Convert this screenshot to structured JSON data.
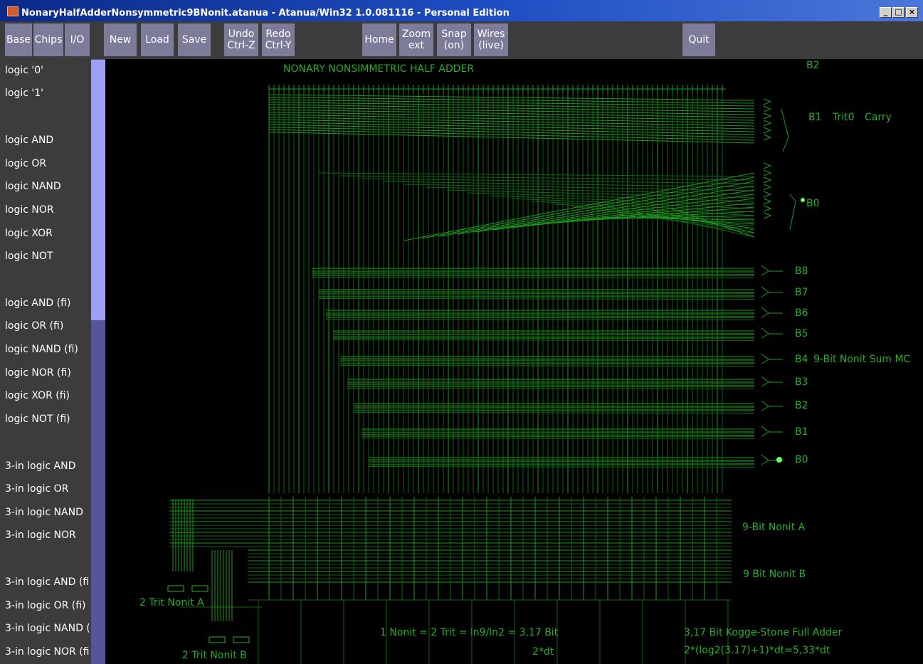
{
  "window": {
    "title": "NonaryHalfAdderNonsymmetric9BNonit.atanua - Atanua/Win32 1.0.081116 - Personal Edition",
    "minimize_glyph": "_",
    "maximize_glyph": "□",
    "close_glyph": "×"
  },
  "toolbar": {
    "base": "Base",
    "chips": "Chips",
    "io": "I/O",
    "new": "New",
    "load": "Load",
    "save": "Save",
    "undo": {
      "line1": "Undo",
      "line2": "Ctrl-Z"
    },
    "redo": {
      "line1": "Redo",
      "line2": "Ctrl-Y"
    },
    "home": "Home",
    "zoom": {
      "line1": "Zoom",
      "line2": "ext"
    },
    "snap": {
      "line1": "Snap",
      "line2": "(on)"
    },
    "wires": {
      "line1": "Wires",
      "line2": "(live)"
    },
    "quit": "Quit"
  },
  "sidebar": {
    "items": [
      "logic '0'",
      "logic '1'",
      "logic AND",
      "logic OR",
      "logic NAND",
      "logic NOR",
      "logic XOR",
      "logic NOT",
      "logic AND (fi)",
      "logic OR (fi)",
      "logic NAND (fi)",
      "logic NOR (fi)",
      "logic XOR (fi)",
      "logic NOT (fi)",
      "3-in logic AND",
      "3-in logic OR",
      "3-in logic NAND",
      "3-in logic NOR",
      "3-in logic AND (fi",
      "3-in logic OR (fi)",
      "3-in logic NAND (",
      "3-in logic NOR (fi"
    ]
  },
  "canvas": {
    "colors": {
      "wire": "#1e9a1e",
      "wire_dim": "#116611",
      "label": "#26b026",
      "led_on": "#66ff66"
    },
    "title": "NONARY NONSIMMETRIC HALF ADDER",
    "outputs": {
      "b2_top": "B2",
      "b1": "B1",
      "trit0": "Trit0",
      "carry": "Carry",
      "b0_top": "B0",
      "sum_bits": [
        "B8",
        "B7",
        "B6",
        "B5",
        "B4",
        "B3",
        "B2",
        "B1",
        "B0"
      ],
      "sum_label": "9-Bit Nonit Sum MC"
    },
    "input_a": "9-Bit Nonit A",
    "input_b": "9 Bit Nonit B",
    "trit_a": "2 Trit Nonit A",
    "trit_b": "2 Trit Nonit B",
    "note_nonit": "1 Nonit = 2 Trit = ln9/ln2 = 3,17 Bit",
    "note_dt": "2*dt",
    "note_kogge": "3,17 Bit Kogge-Stone Full Adder",
    "note_formula": "2*(log2(3.17)+1)*dt=5,33*dt"
  }
}
